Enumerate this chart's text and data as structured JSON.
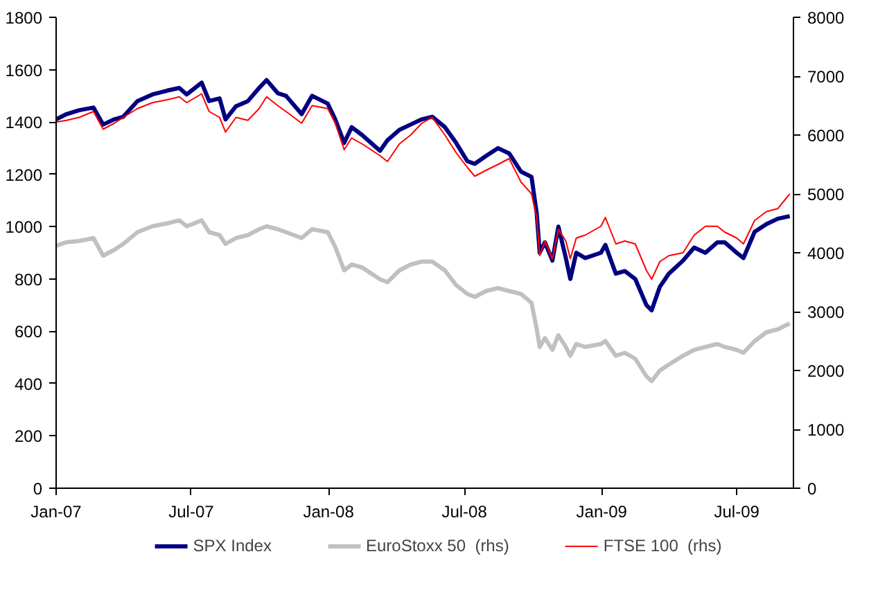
{
  "chart_data": {
    "type": "line",
    "x": [
      "2007-01-01",
      "2007-01-15",
      "2007-02-01",
      "2007-02-20",
      "2007-03-05",
      "2007-03-20",
      "2007-04-01",
      "2007-04-20",
      "2007-05-10",
      "2007-05-30",
      "2007-06-15",
      "2007-06-25",
      "2007-07-15",
      "2007-07-25",
      "2007-08-08",
      "2007-08-16",
      "2007-08-30",
      "2007-09-15",
      "2007-09-30",
      "2007-10-10",
      "2007-10-25",
      "2007-11-05",
      "2007-11-26",
      "2007-12-10",
      "2007-12-31",
      "2008-01-10",
      "2008-01-22",
      "2008-02-01",
      "2008-02-15",
      "2008-03-10",
      "2008-03-20",
      "2008-04-05",
      "2008-04-20",
      "2008-05-05",
      "2008-05-19",
      "2008-06-05",
      "2008-06-20",
      "2008-07-05",
      "2008-07-15",
      "2008-07-30",
      "2008-08-15",
      "2008-08-30",
      "2008-09-15",
      "2008-09-29",
      "2008-10-06",
      "2008-10-10",
      "2008-10-17",
      "2008-10-27",
      "2008-11-04",
      "2008-11-14",
      "2008-11-20",
      "2008-11-28",
      "2008-12-10",
      "2008-12-31",
      "2009-01-06",
      "2009-01-20",
      "2009-02-01",
      "2009-02-15",
      "2009-03-02",
      "2009-03-09",
      "2009-03-20",
      "2009-04-01",
      "2009-04-20",
      "2009-05-05",
      "2009-05-20",
      "2009-06-05",
      "2009-06-15",
      "2009-07-01",
      "2009-07-10",
      "2009-07-25",
      "2009-08-10",
      "2009-08-25",
      "2009-09-10"
    ],
    "series": [
      {
        "name": "SPX Index",
        "color": "#000080",
        "values": [
          1410,
          1430,
          1445,
          1455,
          1390,
          1410,
          1420,
          1480,
          1505,
          1520,
          1530,
          1505,
          1550,
          1480,
          1490,
          1410,
          1460,
          1480,
          1530,
          1560,
          1510,
          1500,
          1430,
          1500,
          1470,
          1410,
          1320,
          1380,
          1350,
          1290,
          1330,
          1370,
          1390,
          1410,
          1420,
          1380,
          1320,
          1250,
          1240,
          1270,
          1300,
          1280,
          1210,
          1190,
          1050,
          900,
          940,
          870,
          1000,
          880,
          800,
          900,
          880,
          900,
          930,
          820,
          830,
          800,
          700,
          680,
          770,
          820,
          870,
          920,
          900,
          940,
          940,
          900,
          880,
          980,
          1010,
          1030,
          1040
        ]
      },
      {
        "name": "EuroStoxx 50  (rhs)",
        "color": "#c0c0c0",
        "axis": "y2",
        "values": [
          4120,
          4180,
          4200,
          4250,
          3950,
          4050,
          4150,
          4350,
          4450,
          4500,
          4550,
          4450,
          4550,
          4350,
          4300,
          4150,
          4250,
          4300,
          4400,
          4450,
          4400,
          4350,
          4250,
          4400,
          4350,
          4100,
          3700,
          3800,
          3750,
          3550,
          3500,
          3700,
          3800,
          3850,
          3850,
          3700,
          3450,
          3300,
          3250,
          3350,
          3400,
          3350,
          3300,
          3150,
          2700,
          2400,
          2550,
          2350,
          2600,
          2400,
          2250,
          2450,
          2400,
          2450,
          2500,
          2250,
          2300,
          2200,
          1900,
          1820,
          2000,
          2100,
          2250,
          2350,
          2400,
          2450,
          2400,
          2350,
          2300,
          2500,
          2650,
          2700,
          2800
        ]
      },
      {
        "name": "FTSE 100  (rhs)",
        "color": "#ff0000",
        "axis": "y2",
        "values": [
          6220,
          6250,
          6300,
          6400,
          6100,
          6200,
          6300,
          6450,
          6550,
          6600,
          6650,
          6550,
          6700,
          6400,
          6300,
          6050,
          6300,
          6250,
          6450,
          6650,
          6500,
          6400,
          6200,
          6500,
          6450,
          6200,
          5750,
          5950,
          5850,
          5650,
          5550,
          5850,
          6000,
          6200,
          6300,
          6000,
          5700,
          5450,
          5300,
          5400,
          5500,
          5600,
          5200,
          5000,
          4600,
          3950,
          4200,
          3900,
          4400,
          4200,
          3900,
          4250,
          4300,
          4450,
          4600,
          4150,
          4200,
          4150,
          3700,
          3550,
          3850,
          3950,
          4000,
          4300,
          4450,
          4450,
          4350,
          4250,
          4150,
          4550,
          4700,
          4750,
          5000
        ]
      }
    ],
    "xlim": [
      "2007-01-01",
      "2009-09-15"
    ],
    "xticks": [
      {
        "value": "2007-01-01",
        "label": "Jan-07"
      },
      {
        "value": "2007-07-01",
        "label": "Jul-07"
      },
      {
        "value": "2008-01-01",
        "label": "Jan-08"
      },
      {
        "value": "2008-07-01",
        "label": "Jul-08"
      },
      {
        "value": "2009-01-01",
        "label": "Jan-09"
      },
      {
        "value": "2009-07-01",
        "label": "Jul-09"
      }
    ],
    "ylim": [
      0,
      1800
    ],
    "yticks": [
      0,
      200,
      400,
      600,
      800,
      1000,
      1200,
      1400,
      1600,
      1800
    ],
    "y2lim": [
      0,
      8000
    ],
    "y2ticks": [
      0,
      1000,
      2000,
      3000,
      4000,
      5000,
      6000,
      7000,
      8000
    ],
    "grid": false,
    "legend": "bottom",
    "marker": "none",
    "line_style": "solid"
  }
}
